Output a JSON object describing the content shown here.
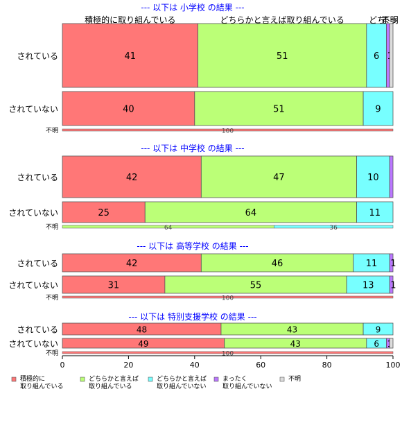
{
  "chart_data": {
    "type": "bar",
    "orientation": "horizontal",
    "stacked": true,
    "xlim": [
      0,
      100
    ],
    "xticks": [
      "0",
      "20",
      "40",
      "60",
      "80",
      "100"
    ],
    "colors": [
      "#FF7777",
      "#BBFF77",
      "#77FFFF",
      "#BB77FF",
      "#DDDDDD"
    ],
    "legend": {
      "position": "bottom",
      "items": [
        {
          "label": "積極的に 取り組んでいる",
          "lines": [
            "積極的に",
            "取り組んでいる"
          ]
        },
        {
          "label": "どちらかと言えば 取り組んでいる",
          "lines": [
            "どちらかと言えば",
            "取り組んでいる"
          ]
        },
        {
          "label": "どちらかと言えば 取り組んでいない",
          "lines": [
            "どちらかと言えば",
            "取り組んでいない"
          ]
        },
        {
          "label": "まったく 取り組んでいない",
          "lines": [
            "まったく",
            "取り組んでいない"
          ]
        },
        {
          "label": "不明",
          "lines": [
            "不明"
          ]
        }
      ]
    },
    "top_labels": [
      "積極的に取り組んでいる",
      "どちらかと言えば取り組んでいる",
      "どち",
      "まっ",
      "不明"
    ],
    "groups": [
      {
        "title": "--- 以下は 小学校 の結果 ---",
        "rows": [
          {
            "label": "されている",
            "values": [
              41,
              51,
              6,
              1,
              1
            ],
            "labels": [
              "41",
              "51",
              "6",
              "1",
              ""
            ]
          },
          {
            "label": "されていない",
            "values": [
              40,
              51,
              9,
              0,
              0
            ],
            "labels": [
              "40",
              "51",
              "9",
              "",
              ""
            ]
          },
          {
            "label": "不明",
            "values": [
              100,
              0,
              0,
              0,
              0
            ],
            "labels": [
              "100",
              "",
              "",
              "",
              ""
            ]
          }
        ]
      },
      {
        "title": "--- 以下は 中学校 の結果 ---",
        "rows": [
          {
            "label": "されている",
            "values": [
              42,
              47,
              10,
              1,
              0
            ],
            "labels": [
              "42",
              "47",
              "10",
              "",
              ""
            ]
          },
          {
            "label": "されていない",
            "values": [
              25,
              64,
              11,
              0,
              0
            ],
            "labels": [
              "25",
              "64",
              "11",
              "",
              ""
            ]
          },
          {
            "label": "不明",
            "values": [
              0,
              64,
              36,
              0,
              0
            ],
            "labels": [
              "",
              "64",
              "36",
              "",
              ""
            ]
          }
        ]
      },
      {
        "title": "--- 以下は 高等学校 の結果 ---",
        "rows": [
          {
            "label": "されている",
            "values": [
              42,
              46,
              11,
              1,
              0
            ],
            "labels": [
              "42",
              "46",
              "11",
              "1",
              ""
            ]
          },
          {
            "label": "されていない",
            "values": [
              31,
              55,
              13,
              1,
              0
            ],
            "labels": [
              "31",
              "55",
              "13",
              "1",
              ""
            ]
          },
          {
            "label": "不明",
            "values": [
              100,
              0,
              0,
              0,
              0
            ],
            "labels": [
              "100",
              "",
              "",
              "",
              ""
            ]
          }
        ]
      },
      {
        "title": "--- 以下は 特別支援学校 の結果 ---",
        "rows": [
          {
            "label": "されている",
            "values": [
              48,
              43,
              9,
              0,
              0
            ],
            "labels": [
              "48",
              "43",
              "9",
              "",
              ""
            ]
          },
          {
            "label": "されていない",
            "values": [
              49,
              43,
              6,
              1,
              1
            ],
            "labels": [
              "49",
              "43",
              "6",
              "1",
              ""
            ]
          },
          {
            "label": "不明",
            "values": [
              100,
              0,
              0,
              0,
              0
            ],
            "labels": [
              "100",
              "",
              "",
              "",
              ""
            ]
          }
        ]
      }
    ]
  }
}
